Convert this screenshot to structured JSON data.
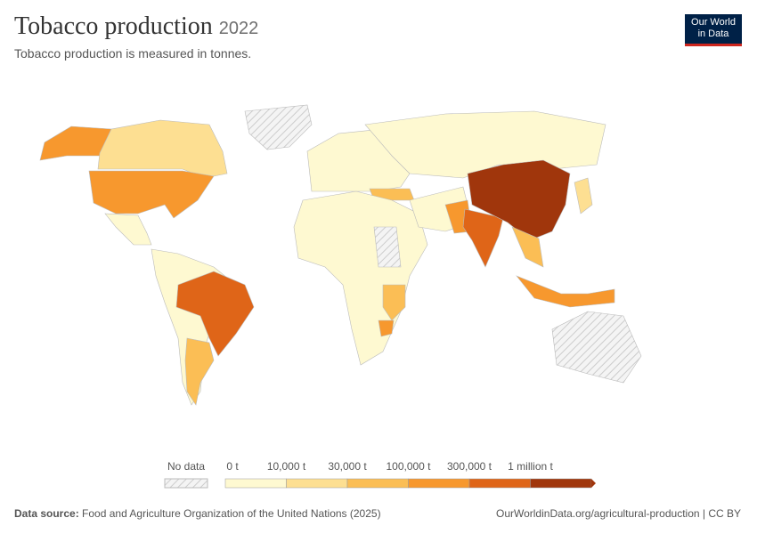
{
  "header": {
    "title": "Tobacco production",
    "year": "2022",
    "subtitle": "Tobacco production is measured in tonnes."
  },
  "logo": {
    "line1": "Our World",
    "line2": "in Data"
  },
  "legend": {
    "no_data": "No data",
    "labels": [
      "0 t",
      "10,000 t",
      "30,000 t",
      "100,000 t",
      "300,000 t",
      "1 million t"
    ],
    "colors": [
      "#fef9d1",
      "#fddf92",
      "#fbbe55",
      "#f7982e",
      "#df6518",
      "#a0360c"
    ]
  },
  "footer": {
    "source_label": "Data source:",
    "source": "Food and Agriculture Organization of the United Nations (2025)",
    "url": "OurWorldinData.org/agricultural-production | CC BY"
  }
}
